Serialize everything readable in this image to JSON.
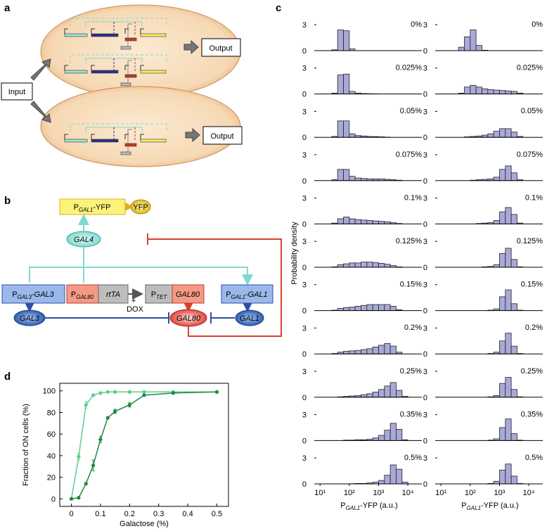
{
  "panel_labels": [
    "a",
    "b",
    "c",
    "d"
  ],
  "diagram_a": {
    "input": "Input",
    "outputs": [
      "Output",
      "Output"
    ]
  },
  "diagram_b": {
    "yfp_gene": {
      "prefix": "P",
      "sub": "GAL1",
      "suffix": "-YFP"
    },
    "yfp": "YFP",
    "gal4": "GAL4",
    "gal3_gene": {
      "prefix": "P",
      "sub": "GAL3",
      "suffix": "-GAL3"
    },
    "gal80_promoter": {
      "prefix": "P",
      "sub": "GAL80"
    },
    "rtta": "rtTA",
    "plus": "+",
    "dox": "DOX",
    "tet_promoter": {
      "prefix": "P",
      "sub": "TET"
    },
    "gal80_gene": "GAL80",
    "gal1_gene": {
      "prefix": "P",
      "sub": "GAL1",
      "suffix": "-GAL1"
    },
    "gal3": "GAL3",
    "gal80": "GAL80",
    "gal1": "GAL1"
  },
  "chart_data": [
    {
      "type": "line",
      "xlabel": "Galactose (%)",
      "ylabel": "Fraction of ON cells (%)",
      "x": [
        0,
        0.025,
        0.05,
        0.075,
        0.1,
        0.125,
        0.15,
        0.2,
        0.25,
        0.35,
        0.5
      ],
      "xlim": [
        -0.04,
        0.54
      ],
      "ylim": [
        -7,
        107
      ],
      "xticks": [
        0,
        0.1,
        0.2,
        0.3,
        0.4,
        0.5
      ],
      "yticks": [
        0,
        20,
        40,
        60,
        80,
        100
      ],
      "series": [
        {
          "color": "#5dcf8c",
          "values": [
            0,
            39,
            87,
            96,
            98,
            99,
            99,
            99,
            99,
            99,
            99
          ],
          "errors": [
            1,
            3,
            3,
            1,
            1,
            0.5,
            0.5,
            0.5,
            0.5,
            0.5,
            0.5
          ]
        },
        {
          "color": "#1f8a40",
          "values": [
            0,
            1,
            14,
            31,
            55,
            75,
            81,
            87,
            96,
            98,
            99
          ],
          "errors": [
            1,
            1,
            1,
            5,
            3,
            1,
            2,
            2,
            1,
            1,
            0.5
          ]
        }
      ]
    },
    {
      "type": "histogram",
      "label": "0%",
      "color": "#a9a9d9",
      "log_x": true,
      "xlim": [
        7.5,
        30000
      ],
      "ylim": [
        0,
        3.5
      ],
      "yticks": [
        0,
        3
      ],
      "bins": [
        10,
        15.8,
        25.1,
        39.8,
        63.1,
        100,
        158,
        251,
        398,
        631,
        1000,
        1585,
        2512,
        3981,
        6310,
        10000,
        15849,
        25119
      ],
      "values": [
        0,
        0,
        0.1,
        2.4,
        2.3,
        0.2,
        0,
        0,
        0,
        0,
        0,
        0,
        0,
        0,
        0,
        0,
        0
      ]
    },
    {
      "type": "histogram",
      "label": "0.025%",
      "color": "#a9a9d9",
      "log_x": true,
      "xlim": [
        7.5,
        30000
      ],
      "ylim": [
        0,
        3.5
      ],
      "yticks": [
        0,
        3
      ],
      "bins": [
        10,
        15.8,
        25.1,
        39.8,
        63.1,
        100,
        158,
        251,
        398,
        631,
        1000,
        1585,
        2512,
        3981,
        6310,
        10000,
        15849,
        25119
      ],
      "values": [
        0,
        0,
        0.1,
        2.2,
        2.3,
        0.3,
        0.1,
        0.05,
        0.03,
        0.02,
        0,
        0,
        0,
        0,
        0,
        0,
        0
      ]
    },
    {
      "type": "histogram",
      "label": "0.05%",
      "color": "#a9a9d9",
      "log_x": true,
      "xlim": [
        7.5,
        30000
      ],
      "ylim": [
        0,
        3.5
      ],
      "yticks": [
        0,
        3
      ],
      "bins": [
        10,
        15.8,
        25.1,
        39.8,
        63.1,
        100,
        158,
        251,
        398,
        631,
        1000,
        1585,
        2512,
        3981,
        6310,
        10000,
        15849,
        25119
      ],
      "values": [
        0,
        0,
        0.1,
        1.9,
        1.9,
        0.4,
        0.2,
        0.15,
        0.1,
        0.08,
        0.05,
        0.02,
        0,
        0,
        0,
        0,
        0
      ]
    },
    {
      "type": "histogram",
      "label": "0.075%",
      "color": "#a9a9d9",
      "log_x": true,
      "xlim": [
        7.5,
        30000
      ],
      "ylim": [
        0,
        3.5
      ],
      "yticks": [
        0,
        3
      ],
      "bins": [
        10,
        15.8,
        25.1,
        39.8,
        63.1,
        100,
        158,
        251,
        398,
        631,
        1000,
        1585,
        2512,
        3981,
        6310,
        10000,
        15849,
        25119
      ],
      "values": [
        0,
        0,
        0.1,
        1.3,
        1.3,
        0.5,
        0.3,
        0.25,
        0.2,
        0.2,
        0.2,
        0.15,
        0.1,
        0.05,
        0,
        0,
        0
      ]
    },
    {
      "type": "histogram",
      "label": "0.1%",
      "color": "#a9a9d9",
      "log_x": true,
      "xlim": [
        7.5,
        30000
      ],
      "ylim": [
        0,
        3.5
      ],
      "yticks": [
        0,
        3
      ],
      "bins": [
        10,
        15.8,
        25.1,
        39.8,
        63.1,
        100,
        158,
        251,
        398,
        631,
        1000,
        1585,
        2512,
        3981,
        6310,
        10000,
        15849,
        25119
      ],
      "values": [
        0,
        0,
        0.1,
        0.6,
        0.8,
        0.6,
        0.5,
        0.45,
        0.4,
        0.35,
        0.3,
        0.25,
        0.15,
        0.05,
        0,
        0,
        0
      ]
    },
    {
      "type": "histogram",
      "label": "0.125%",
      "color": "#a9a9d9",
      "log_x": true,
      "xlim": [
        7.5,
        30000
      ],
      "ylim": [
        0,
        3.5
      ],
      "yticks": [
        0,
        3
      ],
      "ylabel": "Probability density",
      "bins": [
        10,
        15.8,
        25.1,
        39.8,
        63.1,
        100,
        158,
        251,
        398,
        631,
        1000,
        1585,
        2512,
        3981,
        6310,
        10000,
        15849,
        25119
      ],
      "values": [
        0,
        0,
        0.05,
        0.3,
        0.4,
        0.5,
        0.5,
        0.6,
        0.6,
        0.55,
        0.45,
        0.35,
        0.2,
        0.05,
        0,
        0,
        0
      ]
    },
    {
      "type": "histogram",
      "label": "0.15%",
      "color": "#a9a9d9",
      "log_x": true,
      "xlim": [
        7.5,
        30000
      ],
      "ylim": [
        0,
        3.5
      ],
      "yticks": [
        0,
        3
      ],
      "bins": [
        10,
        15.8,
        25.1,
        39.8,
        63.1,
        100,
        158,
        251,
        398,
        631,
        1000,
        1585,
        2512,
        3981,
        6310,
        10000,
        15849,
        25119
      ],
      "values": [
        0,
        0,
        0.05,
        0.25,
        0.35,
        0.4,
        0.5,
        0.6,
        0.7,
        0.7,
        0.7,
        0.7,
        0.5,
        0.1,
        0,
        0,
        0
      ]
    },
    {
      "type": "histogram",
      "label": "0.2%",
      "color": "#a9a9d9",
      "log_x": true,
      "xlim": [
        7.5,
        30000
      ],
      "ylim": [
        0,
        3.5
      ],
      "yticks": [
        0,
        3
      ],
      "bins": [
        10,
        15.8,
        25.1,
        39.8,
        63.1,
        100,
        158,
        251,
        398,
        631,
        1000,
        1585,
        2512,
        3981,
        6310,
        10000,
        15849,
        25119
      ],
      "values": [
        0,
        0,
        0.05,
        0.2,
        0.3,
        0.35,
        0.4,
        0.5,
        0.6,
        0.8,
        1,
        1.2,
        0.9,
        0.2,
        0,
        0,
        0
      ]
    },
    {
      "type": "histogram",
      "label": "0.25%",
      "color": "#a9a9d9",
      "log_x": true,
      "xlim": [
        7.5,
        30000
      ],
      "ylim": [
        0,
        3.5
      ],
      "yticks": [
        0,
        3
      ],
      "bins": [
        10,
        15.8,
        25.1,
        39.8,
        63.1,
        100,
        158,
        251,
        398,
        631,
        1000,
        1585,
        2512,
        3981,
        6310,
        10000,
        15849,
        25119
      ],
      "values": [
        0,
        0,
        0,
        0.05,
        0.1,
        0.15,
        0.2,
        0.3,
        0.4,
        0.6,
        0.9,
        1.3,
        1.7,
        0.8,
        0.1,
        0,
        0
      ]
    },
    {
      "type": "histogram",
      "label": "0.35%",
      "color": "#a9a9d9",
      "log_x": true,
      "xlim": [
        7.5,
        30000
      ],
      "ylim": [
        0,
        3.5
      ],
      "yticks": [
        0,
        3
      ],
      "bins": [
        10,
        15.8,
        25.1,
        39.8,
        63.1,
        100,
        158,
        251,
        398,
        631,
        1000,
        1585,
        2512,
        3981,
        6310,
        10000,
        15849,
        25119
      ],
      "values": [
        0,
        0,
        0,
        0,
        0.05,
        0.05,
        0.1,
        0.1,
        0.15,
        0.3,
        0.6,
        1.2,
        2,
        1.3,
        0.1,
        0,
        0
      ]
    },
    {
      "type": "histogram",
      "label": "0.5%",
      "color": "#a9a9d9",
      "log_x": true,
      "xlim": [
        7.5,
        30000
      ],
      "ylim": [
        0,
        3.5
      ],
      "yticks": [
        0,
        3
      ],
      "xticks": [
        {
          "value": 10,
          "label": "10¹"
        },
        {
          "value": 100,
          "label": "10²"
        },
        {
          "value": 1000,
          "label": "10³"
        },
        {
          "value": 10000,
          "label": "10⁴"
        }
      ],
      "xlabel": {
        "prefix": "P",
        "sub": "GAL1",
        "suffix": "-YFP (a.u.)"
      },
      "bins": [
        10,
        15.8,
        25.1,
        39.8,
        63.1,
        100,
        158,
        251,
        398,
        631,
        1000,
        1585,
        2512,
        3981,
        6310,
        10000,
        15849,
        25119
      ],
      "values": [
        0,
        0,
        0,
        0,
        0,
        0.02,
        0.05,
        0.05,
        0.1,
        0.2,
        0.4,
        1,
        2.2,
        1.7,
        0.2,
        0,
        0
      ]
    },
    {
      "type": "histogram",
      "label": "0%",
      "color": "#a9a9d9",
      "log_x": true,
      "xlim": [
        7.5,
        30000
      ],
      "ylim": [
        0,
        3.5
      ],
      "yticks": [
        0,
        3
      ],
      "bins": [
        10,
        15.8,
        25.1,
        39.8,
        63.1,
        100,
        158,
        251,
        398,
        631,
        1000,
        1585,
        2512,
        3981,
        6310,
        10000,
        15849,
        25119
      ],
      "values": [
        0,
        0,
        0,
        0.4,
        1.6,
        2.4,
        0.6,
        0.05,
        0,
        0,
        0,
        0,
        0,
        0,
        0,
        0,
        0
      ]
    },
    {
      "type": "histogram",
      "label": "0.025%",
      "color": "#a9a9d9",
      "log_x": true,
      "xlim": [
        7.5,
        30000
      ],
      "ylim": [
        0,
        3.5
      ],
      "yticks": [
        0,
        3
      ],
      "bins": [
        10,
        15.8,
        25.1,
        39.8,
        63.1,
        100,
        158,
        251,
        398,
        631,
        1000,
        1585,
        2512,
        3981,
        6310,
        10000,
        15849,
        25119
      ],
      "values": [
        0,
        0,
        0,
        0.1,
        0.8,
        1,
        0.8,
        0.6,
        0.5,
        0.45,
        0.4,
        0.35,
        0.3,
        0.1,
        0,
        0,
        0
      ]
    },
    {
      "type": "histogram",
      "label": "0.05%",
      "color": "#a9a9d9",
      "log_x": true,
      "xlim": [
        7.5,
        30000
      ],
      "ylim": [
        0,
        3.5
      ],
      "yticks": [
        0,
        3
      ],
      "bins": [
        10,
        15.8,
        25.1,
        39.8,
        63.1,
        100,
        158,
        251,
        398,
        631,
        1000,
        1585,
        2512,
        3981,
        6310,
        10000,
        15849,
        25119
      ],
      "values": [
        0,
        0,
        0,
        0,
        0.05,
        0.1,
        0.15,
        0.25,
        0.4,
        0.7,
        1,
        1,
        0.6,
        0.1,
        0,
        0,
        0
      ]
    },
    {
      "type": "histogram",
      "label": "0.075%",
      "color": "#a9a9d9",
      "log_x": true,
      "xlim": [
        7.5,
        30000
      ],
      "ylim": [
        0,
        3.5
      ],
      "yticks": [
        0,
        3
      ],
      "bins": [
        10,
        15.8,
        25.1,
        39.8,
        63.1,
        100,
        158,
        251,
        398,
        631,
        1000,
        1585,
        2512,
        3981,
        6310,
        10000,
        15849,
        25119
      ],
      "values": [
        0,
        0,
        0,
        0,
        0,
        0.05,
        0.1,
        0.15,
        0.2,
        0.4,
        1.3,
        1.7,
        0.9,
        0.1,
        0,
        0,
        0
      ]
    },
    {
      "type": "histogram",
      "label": "0.1%",
      "color": "#a9a9d9",
      "log_x": true,
      "xlim": [
        7.5,
        30000
      ],
      "ylim": [
        0,
        3.5
      ],
      "yticks": [
        0,
        3
      ],
      "bins": [
        10,
        15.8,
        25.1,
        39.8,
        63.1,
        100,
        158,
        251,
        398,
        631,
        1000,
        1585,
        2512,
        3981,
        6310,
        10000,
        15849,
        25119
      ],
      "values": [
        0,
        0,
        0,
        0,
        0,
        0,
        0.05,
        0.1,
        0.15,
        0.4,
        1.4,
        1.9,
        1.1,
        0.1,
        0,
        0,
        0
      ]
    },
    {
      "type": "histogram",
      "label": "0.125%",
      "color": "#a9a9d9",
      "log_x": true,
      "xlim": [
        7.5,
        30000
      ],
      "ylim": [
        0,
        3.5
      ],
      "yticks": [
        0,
        3
      ],
      "bins": [
        10,
        15.8,
        25.1,
        39.8,
        63.1,
        100,
        158,
        251,
        398,
        631,
        1000,
        1585,
        2512,
        3981,
        6310,
        10000,
        15849,
        25119
      ],
      "values": [
        0,
        0,
        0,
        0,
        0,
        0,
        0,
        0.05,
        0.1,
        0.3,
        1.6,
        2.2,
        0.9,
        0.05,
        0,
        0,
        0
      ]
    },
    {
      "type": "histogram",
      "label": "0.15%",
      "color": "#a9a9d9",
      "log_x": true,
      "xlim": [
        7.5,
        30000
      ],
      "ylim": [
        0,
        3.5
      ],
      "yticks": [
        0,
        3
      ],
      "bins": [
        10,
        15.8,
        25.1,
        39.8,
        63.1,
        100,
        158,
        251,
        398,
        631,
        1000,
        1585,
        2512,
        3981,
        6310,
        10000,
        15849,
        25119
      ],
      "values": [
        0,
        0,
        0,
        0,
        0,
        0,
        0,
        0,
        0.05,
        0.2,
        1.6,
        2.4,
        0.8,
        0.05,
        0,
        0,
        0
      ]
    },
    {
      "type": "histogram",
      "label": "0.2%",
      "color": "#a9a9d9",
      "log_x": true,
      "xlim": [
        7.5,
        30000
      ],
      "ylim": [
        0,
        3.5
      ],
      "yticks": [
        0,
        3
      ],
      "bins": [
        10,
        15.8,
        25.1,
        39.8,
        63.1,
        100,
        158,
        251,
        398,
        631,
        1000,
        1585,
        2512,
        3981,
        6310,
        10000,
        15849,
        25119
      ],
      "values": [
        0,
        0,
        0,
        0,
        0,
        0,
        0,
        0,
        0.05,
        0.2,
        1.5,
        2.4,
        0.9,
        0.05,
        0,
        0,
        0
      ]
    },
    {
      "type": "histogram",
      "label": "0.25%",
      "color": "#a9a9d9",
      "log_x": true,
      "xlim": [
        7.5,
        30000
      ],
      "ylim": [
        0,
        3.5
      ],
      "yticks": [
        0,
        3
      ],
      "bins": [
        10,
        15.8,
        25.1,
        39.8,
        63.1,
        100,
        158,
        251,
        398,
        631,
        1000,
        1585,
        2512,
        3981,
        6310,
        10000,
        15849,
        25119
      ],
      "values": [
        0,
        0,
        0,
        0,
        0,
        0,
        0,
        0,
        0.05,
        0.2,
        1.6,
        2.3,
        0.9,
        0.05,
        0,
        0,
        0
      ]
    },
    {
      "type": "histogram",
      "label": "0.35%",
      "color": "#a9a9d9",
      "log_x": true,
      "xlim": [
        7.5,
        30000
      ],
      "ylim": [
        0,
        3.5
      ],
      "yticks": [
        0,
        3
      ],
      "bins": [
        10,
        15.8,
        25.1,
        39.8,
        63.1,
        100,
        158,
        251,
        398,
        631,
        1000,
        1585,
        2512,
        3981,
        6310,
        10000,
        15849,
        25119
      ],
      "values": [
        0,
        0,
        0,
        0,
        0,
        0,
        0,
        0,
        0.05,
        0.2,
        1.5,
        2.5,
        0.8,
        0.05,
        0,
        0,
        0
      ]
    },
    {
      "type": "histogram",
      "label": "0.5%",
      "color": "#a9a9d9",
      "log_x": true,
      "xlim": [
        7.5,
        30000
      ],
      "ylim": [
        0,
        3.5
      ],
      "yticks": [
        0,
        3
      ],
      "xticks": [
        {
          "value": 10,
          "label": "10¹"
        },
        {
          "value": 100,
          "label": "10²"
        },
        {
          "value": 1000,
          "label": "10³"
        },
        {
          "value": 10000,
          "label": "10⁴"
        }
      ],
      "xlabel": {
        "prefix": "P",
        "sub": "GAL1",
        "suffix": "-YFP (a.u.)"
      },
      "bins": [
        10,
        15.8,
        25.1,
        39.8,
        63.1,
        100,
        158,
        251,
        398,
        631,
        1000,
        1585,
        2512,
        3981,
        6310,
        10000,
        15849,
        25119
      ],
      "values": [
        0,
        0,
        0,
        0,
        0,
        0,
        0,
        0,
        0.05,
        0.3,
        1.6,
        2.3,
        0.9,
        0.05,
        0,
        0,
        0
      ]
    }
  ]
}
